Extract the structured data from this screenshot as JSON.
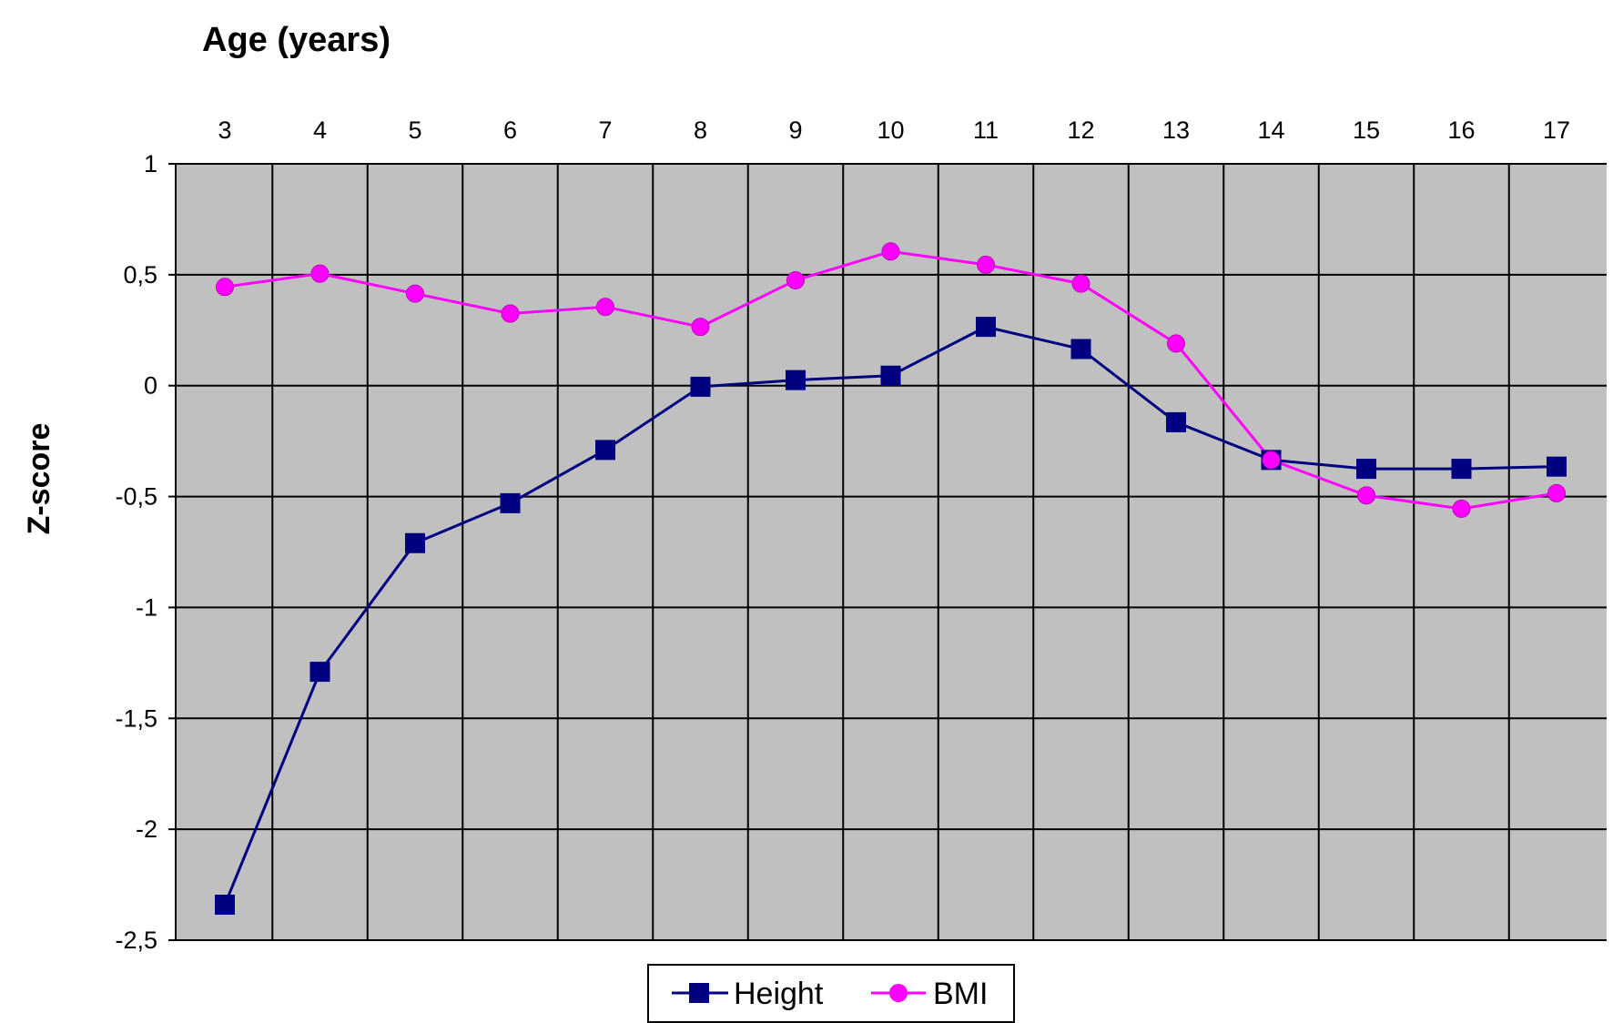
{
  "chart_data": {
    "type": "line",
    "x_axis_title": "Age (years)",
    "y_axis_title": "Z-score",
    "x_axis_position": "top",
    "categories": [
      "3",
      "4",
      "5",
      "6",
      "7",
      "8",
      "9",
      "10",
      "11",
      "12",
      "13",
      "14",
      "15",
      "16",
      "17"
    ],
    "x": [
      3,
      4,
      5,
      6,
      7,
      8,
      9,
      10,
      11,
      12,
      13,
      14,
      15,
      16,
      17
    ],
    "ylim": [
      -2.5,
      1
    ],
    "y_ticks": [
      1,
      0.5,
      0,
      -0.5,
      -1,
      -1.5,
      -2,
      -2.5
    ],
    "y_tick_labels": [
      "1",
      "0,5",
      "0",
      "-0,5",
      "-1",
      "-1,5",
      "-2",
      "-2,5"
    ],
    "grid": true,
    "plot_background": "#c0c0c0",
    "legend_position": "bottom",
    "series": [
      {
        "name": "Height",
        "color": "#000080",
        "marker": "square",
        "values": [
          -2.34,
          -1.29,
          -0.71,
          -0.53,
          -0.29,
          -0.005,
          0.025,
          0.045,
          0.265,
          0.165,
          -0.165,
          -0.335,
          -0.375,
          -0.375,
          -0.365
        ]
      },
      {
        "name": "BMI",
        "color": "#ff00ff",
        "marker": "circle",
        "values": [
          0.445,
          0.505,
          0.415,
          0.325,
          0.355,
          0.265,
          0.475,
          0.605,
          0.545,
          0.46,
          0.19,
          -0.335,
          -0.495,
          -0.555,
          -0.485
        ]
      }
    ]
  }
}
